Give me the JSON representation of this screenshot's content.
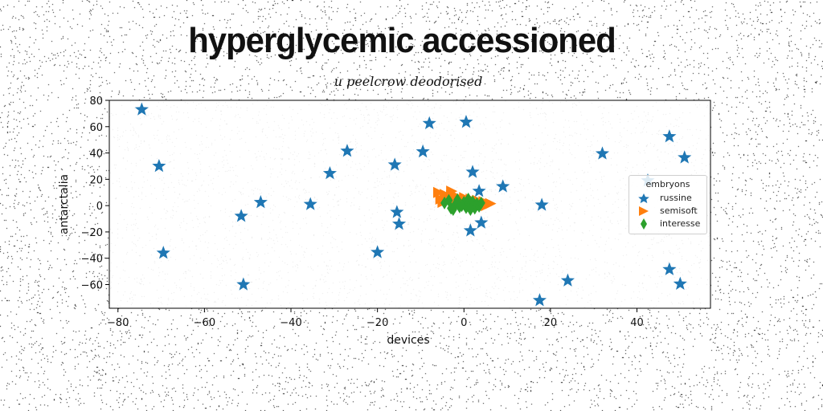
{
  "page": {
    "title": "hyperglycemic accessioned",
    "subtitle": "u peelcrow deodorised"
  },
  "chart_data": {
    "type": "scatter",
    "xlabel": "devices",
    "ylabel": "antarctalia",
    "xlim": [
      -82,
      57
    ],
    "ylim": [
      -78,
      80
    ],
    "xticks": [
      -80,
      -60,
      -40,
      -20,
      0,
      20,
      40
    ],
    "yticks": [
      -60,
      -40,
      -20,
      0,
      20,
      40,
      60,
      80
    ],
    "legend": {
      "title": "embryons",
      "placement": "right"
    },
    "series": [
      {
        "name": "russine",
        "color": "#1f77b4",
        "marker": "star",
        "points": [
          [
            -74.5,
            73
          ],
          [
            -70.5,
            30
          ],
          [
            -69.5,
            -36
          ],
          [
            -51.5,
            -8
          ],
          [
            -51,
            -60
          ],
          [
            -47,
            2.5
          ],
          [
            -35.5,
            1
          ],
          [
            -31,
            24.5
          ],
          [
            -27,
            41.5
          ],
          [
            -20,
            -35.5
          ],
          [
            -16,
            31
          ],
          [
            -15.5,
            -5
          ],
          [
            -15,
            -14
          ],
          [
            -9.5,
            41
          ],
          [
            -8,
            62.5
          ],
          [
            0.5,
            63.5
          ],
          [
            1.5,
            -19
          ],
          [
            2,
            25.5
          ],
          [
            3.5,
            11
          ],
          [
            4,
            -13
          ],
          [
            9,
            14.5
          ],
          [
            18,
            0.5
          ],
          [
            17.5,
            -72
          ],
          [
            24,
            -57
          ],
          [
            32,
            39.5
          ],
          [
            42.5,
            19
          ],
          [
            47.5,
            52.5
          ],
          [
            47.5,
            -48.5
          ],
          [
            50,
            -59.5
          ],
          [
            51,
            36.5
          ]
        ]
      },
      {
        "name": "semisoft",
        "color": "#ff7f0e",
        "marker": "triangle-right",
        "points": [
          [
            -6,
            10
          ],
          [
            -4.5,
            8.5
          ],
          [
            -3,
            7.5
          ],
          [
            -1.5,
            6.5
          ],
          [
            0,
            6
          ],
          [
            1.5,
            5
          ],
          [
            3,
            4
          ],
          [
            4.5,
            3
          ],
          [
            6,
            1.5
          ],
          [
            -5.5,
            5
          ],
          [
            -4,
            4
          ],
          [
            -2.5,
            3
          ],
          [
            -1,
            2
          ],
          [
            0.5,
            1
          ],
          [
            2,
            0.5
          ],
          [
            3.5,
            -0.5
          ],
          [
            5,
            0
          ],
          [
            -3,
            11
          ],
          [
            -5,
            2.5
          ]
        ]
      },
      {
        "name": "interesse",
        "color": "#2ca02c",
        "marker": "thin_diamond",
        "points": [
          [
            -4.5,
            2
          ],
          [
            -3.5,
            4
          ],
          [
            -3,
            -2
          ],
          [
            -2,
            1
          ],
          [
            -1.5,
            4.5
          ],
          [
            -1,
            -1
          ],
          [
            0,
            2.5
          ],
          [
            0.5,
            -1.5
          ],
          [
            1,
            5
          ],
          [
            1.5,
            0.5
          ],
          [
            2,
            3
          ],
          [
            2.5,
            -2
          ],
          [
            3,
            1.5
          ],
          [
            3.5,
            -0.5
          ],
          [
            4,
            2
          ],
          [
            -2.5,
            -3
          ],
          [
            1.5,
            -3
          ],
          [
            -0.5,
            0
          ]
        ]
      }
    ]
  }
}
